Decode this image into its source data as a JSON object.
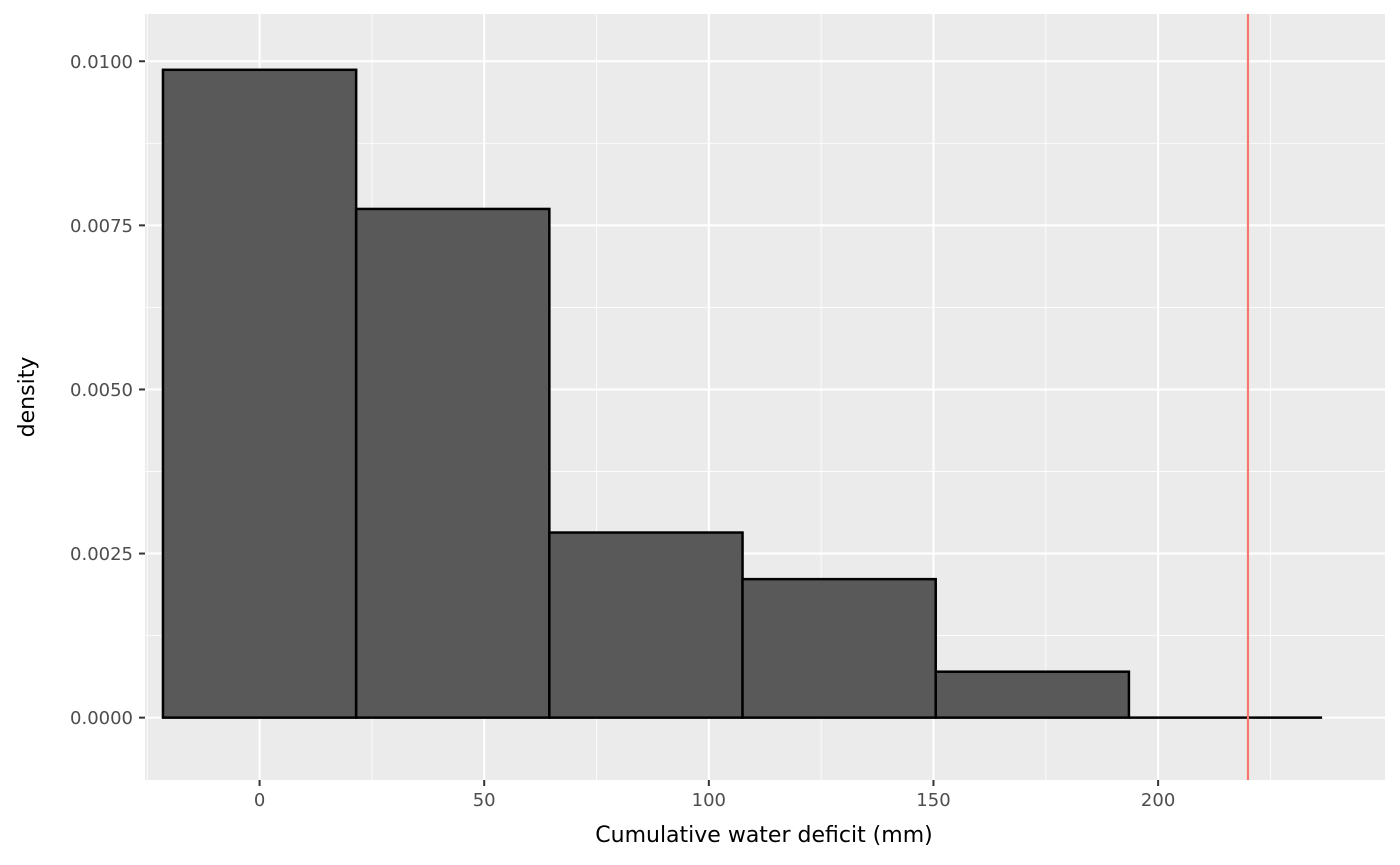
{
  "chart_data": {
    "type": "bar",
    "subtype": "histogram",
    "xlabel": "Cumulative water deficit (mm)",
    "ylabel": "density",
    "xlim": [
      -25.5,
      250.5
    ],
    "ylim": [
      -0.00095,
      0.01072
    ],
    "x_ticks": [
      0,
      50,
      100,
      150,
      200
    ],
    "x_tick_labels": [
      "0",
      "50",
      "100",
      "150",
      "200"
    ],
    "y_ticks": [
      0,
      0.0025,
      0.005,
      0.0075,
      0.01
    ],
    "y_tick_labels": [
      "0.0000",
      "0.0025",
      "0.0050",
      "0.0075",
      "0.0100"
    ],
    "bins": [
      {
        "x0": -21.5,
        "x1": 21.5,
        "value": 0.00987
      },
      {
        "x0": 21.5,
        "x1": 64.5,
        "value": 0.00775
      },
      {
        "x0": 64.5,
        "x1": 107.5,
        "value": 0.00282
      },
      {
        "x0": 107.5,
        "x1": 150.5,
        "value": 0.00211
      },
      {
        "x0": 150.5,
        "x1": 193.5,
        "value": 0.0007
      },
      {
        "x0": 193.5,
        "x1": 236.5,
        "value": 0
      }
    ],
    "reference_line": {
      "x": 220
    },
    "grid": true,
    "legend": "none",
    "colors": {
      "panel_bg": "#ebebeb",
      "grid_major": "#ffffff",
      "bar_fill": "#595959",
      "bar_outline": "#000000",
      "reference_line": "#f8766d"
    }
  }
}
